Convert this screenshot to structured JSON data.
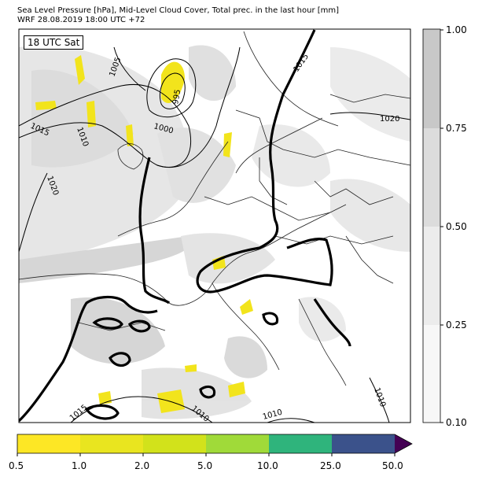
{
  "header": {
    "title_line1": "Sea Level Pressure [hPa], Mid-Level Cloud Cover, Total prec. in the last hour [mm]",
    "title_line2": "WRF 28.08.2019 18:00 UTC +72"
  },
  "map": {
    "time_badge": "18 UTC Sat",
    "isobar_labels": [
      "1005",
      "995",
      "1000",
      "1010",
      "1015",
      "1020",
      "1015",
      "1020",
      "1015",
      "1010",
      "1010",
      "1010"
    ]
  },
  "cloud_colorbar": {
    "ticks": [
      "1.00",
      "0.75",
      "0.50",
      "0.25",
      "0.10"
    ],
    "colors": [
      "#c8c8c8",
      "#dcdcdc",
      "#ececec",
      "#f7f7f7"
    ]
  },
  "precip_colorbar": {
    "ticks": [
      "0.5",
      "1.0",
      "2.0",
      "5.0",
      "10.0",
      "25.0",
      "50.0"
    ],
    "colors": [
      "#fde725",
      "#e9e51f",
      "#d2e21b",
      "#a0da39",
      "#2fb47c",
      "#3b528b",
      "#440154"
    ]
  }
}
